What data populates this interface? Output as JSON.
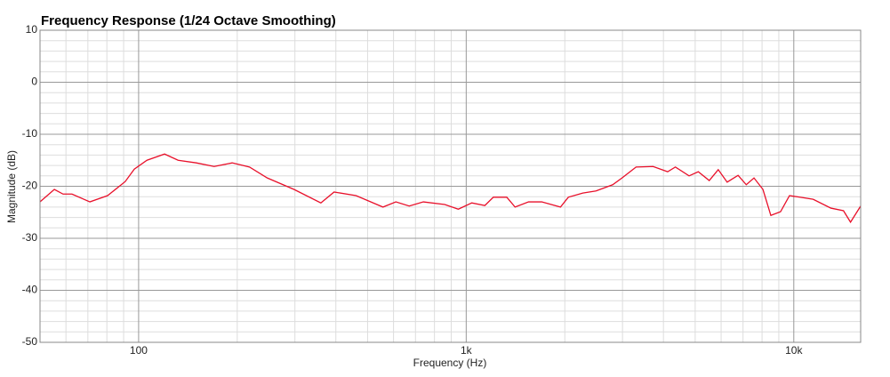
{
  "chart_data": {
    "type": "line",
    "title": "Frequency Response (1/24 Octave Smoothing)",
    "xlabel": "Frequency (Hz)",
    "ylabel": "Magnitude (dB)",
    "xscale": "log",
    "xlim": [
      50,
      16000
    ],
    "ylim": [
      -50,
      10
    ],
    "xticks": [
      {
        "value": 100,
        "label": "100"
      },
      {
        "value": 1000,
        "label": "1k"
      },
      {
        "value": 10000,
        "label": "10k"
      }
    ],
    "yticks": [
      10,
      0,
      -10,
      -20,
      -30,
      -40,
      -50
    ],
    "xminor_ticks": [
      50,
      60,
      70,
      80,
      90,
      200,
      300,
      400,
      500,
      600,
      700,
      800,
      900,
      2000,
      3000,
      4000,
      5000,
      6000,
      7000,
      8000,
      9000
    ],
    "yminor_ticks": [
      8,
      6,
      4,
      2,
      -2,
      -4,
      -6,
      -8,
      -12,
      -14,
      -16,
      -18,
      -22,
      -24,
      -26,
      -28,
      -32,
      -34,
      -36,
      -38,
      -42,
      -44,
      -46,
      -48
    ],
    "grid": true,
    "series": [
      {
        "name": "Frequency Response",
        "color": "#e8102a",
        "x": [
          50,
          55.3,
          58.8,
          62.6,
          71,
          80.4,
          91,
          97,
          106,
          120,
          132,
          150,
          170,
          193,
          218,
          247,
          298,
          360,
          395,
          461,
          557,
          610,
          670,
          740,
          860,
          946,
          1040,
          1140,
          1210,
          1330,
          1410,
          1550,
          1700,
          1940,
          2050,
          2270,
          2490,
          2800,
          2990,
          3300,
          3720,
          4120,
          4350,
          4790,
          5110,
          5520,
          5880,
          6260,
          6760,
          7160,
          7560,
          8050,
          8510,
          9110,
          9700,
          10440,
          11460,
          12980,
          14180,
          14900,
          16000
        ],
        "values": [
          -23,
          -20.6,
          -21.5,
          -21.5,
          -23,
          -21.8,
          -19.1,
          -16.7,
          -15,
          -13.8,
          -15,
          -15.5,
          -16.2,
          -15.5,
          -16.3,
          -18.4,
          -20.6,
          -23.2,
          -21.1,
          -21.8,
          -24,
          -23,
          -23.8,
          -23,
          -23.5,
          -24.4,
          -23.2,
          -23.7,
          -22.1,
          -22.1,
          -24,
          -23,
          -23,
          -24,
          -22.1,
          -21.3,
          -20.9,
          -19.7,
          -18.4,
          -16.3,
          -16.2,
          -17.2,
          -16.3,
          -18,
          -17.2,
          -18.9,
          -16.8,
          -19.2,
          -17.9,
          -19.7,
          -18.4,
          -20.6,
          -25.6,
          -24.9,
          -21.8,
          -22.1,
          -22.5,
          -24.2,
          -24.7,
          -26.9,
          -23.8
        ]
      }
    ]
  }
}
